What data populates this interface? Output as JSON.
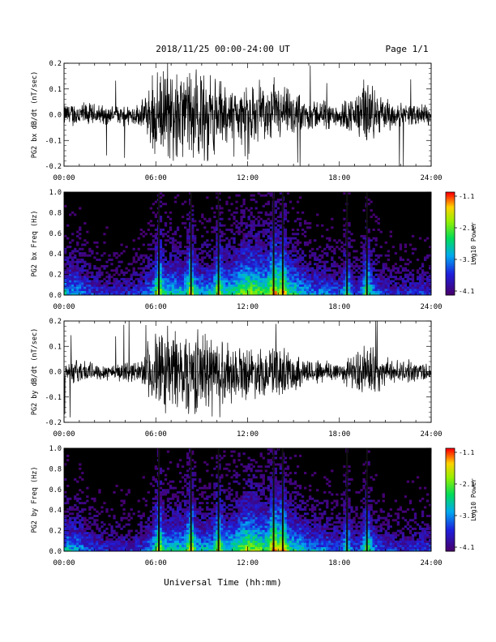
{
  "header": {
    "title": "2018/11/25  00:00-24:00 UT",
    "page": "Page 1/1"
  },
  "xlabel": "Universal Time (hh:mm)",
  "chart_data": [
    {
      "type": "line",
      "ylabel": "PG2 bx dB/dt (nT/sec)",
      "xlim": [
        0,
        24
      ],
      "ylim": [
        -0.2,
        0.2
      ],
      "x_ticks": [
        "00:00",
        "06:00",
        "12:00",
        "18:00",
        "24:00"
      ],
      "y_ticks": [
        "-0.2",
        "-0.1",
        "0.0",
        "0.1",
        "0.2"
      ],
      "series": [
        {
          "x": [
            0,
            1,
            2,
            3,
            4,
            5,
            5.5,
            6,
            7,
            8,
            9,
            10,
            11,
            12,
            13,
            14,
            15,
            16,
            17,
            18,
            19,
            20,
            21,
            22,
            23,
            24
          ],
          "amplitude": [
            0.05,
            0.06,
            0.05,
            0.04,
            0.05,
            0.05,
            0.12,
            0.18,
            0.2,
            0.2,
            0.2,
            0.17,
            0.12,
            0.13,
            0.12,
            0.14,
            0.1,
            0.07,
            0.07,
            0.06,
            0.09,
            0.15,
            0.07,
            0.05,
            0.05,
            0.05
          ]
        }
      ]
    },
    {
      "type": "heatmap",
      "ylabel": "PG2 bx Freq (Hz)",
      "xlim": [
        0,
        24
      ],
      "ylim": [
        0,
        1.0
      ],
      "x_ticks": [
        "00:00",
        "06:00",
        "12:00",
        "18:00",
        "24:00"
      ],
      "y_ticks": [
        "0.0",
        "0.2",
        "0.4",
        "0.6",
        "0.8",
        "1.0"
      ],
      "colorbar": {
        "label": "Log10 Power",
        "ticks": [
          "-1.1",
          "-2.1",
          "-3.1",
          "-4.1"
        ]
      }
    },
    {
      "type": "line",
      "ylabel": "PG2 by dB/dt (nT/sec)",
      "xlim": [
        0,
        24
      ],
      "ylim": [
        -0.2,
        0.2
      ],
      "x_ticks": [
        "00:00",
        "06:00",
        "12:00",
        "18:00",
        "24:00"
      ],
      "y_ticks": [
        "-0.2",
        "-0.1",
        "0.0",
        "0.1",
        "0.2"
      ],
      "series": [
        {
          "x": [
            0,
            1,
            2,
            3,
            4,
            5,
            5.5,
            6,
            7,
            8,
            9,
            10,
            11,
            12,
            13,
            14,
            15,
            16,
            17,
            18,
            19,
            20,
            21,
            22,
            23,
            24
          ],
          "amplitude": [
            0.04,
            0.06,
            0.04,
            0.04,
            0.04,
            0.05,
            0.14,
            0.18,
            0.2,
            0.2,
            0.19,
            0.16,
            0.13,
            0.12,
            0.11,
            0.12,
            0.09,
            0.06,
            0.06,
            0.05,
            0.08,
            0.14,
            0.06,
            0.05,
            0.05,
            0.04
          ]
        }
      ]
    },
    {
      "type": "heatmap",
      "ylabel": "PG2 by Freq (Hz)",
      "xlim": [
        0,
        24
      ],
      "ylim": [
        0,
        1.0
      ],
      "x_ticks": [
        "00:00",
        "06:00",
        "12:00",
        "18:00",
        "24:00"
      ],
      "y_ticks": [
        "0.0",
        "0.2",
        "0.4",
        "0.6",
        "0.8",
        "1.0"
      ],
      "colorbar": {
        "label": "Log10 Power",
        "ticks": [
          "-1.1",
          "-2.1",
          "-3.1",
          "-4.1"
        ]
      }
    }
  ]
}
